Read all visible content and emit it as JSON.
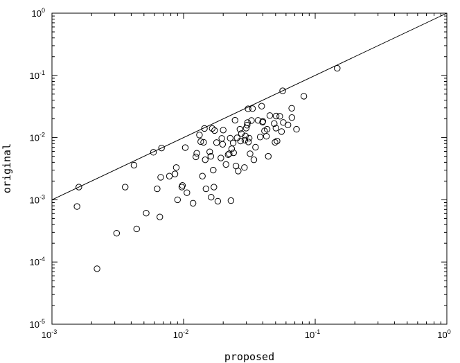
{
  "chart_data": {
    "type": "scatter",
    "xlabel": "proposed",
    "ylabel": "original",
    "xscale": "log",
    "yscale": "log",
    "xlim": [
      0.001,
      1
    ],
    "ylim": [
      1e-05,
      1
    ],
    "grid": false,
    "x_ticks": [
      {
        "base": "10",
        "exp": "-3",
        "value": 0.001
      },
      {
        "base": "10",
        "exp": "-2",
        "value": 0.01
      },
      {
        "base": "10",
        "exp": "-1",
        "value": 0.1
      },
      {
        "base": "10",
        "exp": "0",
        "value": 1
      }
    ],
    "y_ticks": [
      {
        "base": "10",
        "exp": "-5",
        "value": 1e-05
      },
      {
        "base": "10",
        "exp": "-4",
        "value": 0.0001
      },
      {
        "base": "10",
        "exp": "-3",
        "value": 0.001
      },
      {
        "base": "10",
        "exp": "-2",
        "value": 0.01
      },
      {
        "base": "10",
        "exp": "-1",
        "value": 0.1
      },
      {
        "base": "10",
        "exp": "0",
        "value": 1
      }
    ],
    "reference_line": {
      "x": [
        0.001,
        1
      ],
      "y": [
        0.001,
        1
      ]
    },
    "series": [
      {
        "points": [
          [
            0.00155,
            0.00078
          ],
          [
            0.0016,
            0.0016
          ],
          [
            0.0022,
            7.8e-05
          ],
          [
            0.0031,
            0.00029
          ],
          [
            0.0036,
            0.0016
          ],
          [
            0.0042,
            0.0036
          ],
          [
            0.0044,
            0.00034
          ],
          [
            0.0052,
            0.00061
          ],
          [
            0.0059,
            0.0058
          ],
          [
            0.0063,
            0.0015
          ],
          [
            0.0066,
            0.00053
          ],
          [
            0.0067,
            0.0023
          ],
          [
            0.0068,
            0.0068
          ],
          [
            0.0078,
            0.0024
          ],
          [
            0.0086,
            0.0026
          ],
          [
            0.0088,
            0.0033
          ],
          [
            0.009,
            0.001
          ],
          [
            0.0097,
            0.0016
          ],
          [
            0.0098,
            0.0017
          ],
          [
            0.0103,
            0.0069
          ],
          [
            0.0106,
            0.0013
          ],
          [
            0.0118,
            0.00088
          ],
          [
            0.0124,
            0.0049
          ],
          [
            0.0126,
            0.0056
          ],
          [
            0.0132,
            0.011
          ],
          [
            0.0135,
            0.0086
          ],
          [
            0.0139,
            0.0024
          ],
          [
            0.0142,
            0.0084
          ],
          [
            0.0144,
            0.014
          ],
          [
            0.0146,
            0.0044
          ],
          [
            0.0148,
            0.0015
          ],
          [
            0.0158,
            0.0059
          ],
          [
            0.0161,
            0.005
          ],
          [
            0.0162,
            0.0011
          ],
          [
            0.0165,
            0.014
          ],
          [
            0.0168,
            0.003
          ],
          [
            0.017,
            0.0016
          ],
          [
            0.0172,
            0.013
          ],
          [
            0.0178,
            0.0083
          ],
          [
            0.0182,
            0.00095
          ],
          [
            0.0192,
            0.0047
          ],
          [
            0.0195,
            0.0097
          ],
          [
            0.0198,
            0.0078
          ],
          [
            0.02,
            0.0132
          ],
          [
            0.021,
            0.0037
          ],
          [
            0.0218,
            0.0053
          ],
          [
            0.0222,
            0.0055
          ],
          [
            0.0226,
            0.0098
          ],
          [
            0.0229,
            0.00097
          ],
          [
            0.0232,
            0.0066
          ],
          [
            0.0238,
            0.0082
          ],
          [
            0.024,
            0.0057
          ],
          [
            0.0246,
            0.019
          ],
          [
            0.025,
            0.0035
          ],
          [
            0.0255,
            0.0099
          ],
          [
            0.026,
            0.0029
          ],
          [
            0.0268,
            0.0136
          ],
          [
            0.0271,
            0.0088
          ],
          [
            0.0275,
            0.0116
          ],
          [
            0.029,
            0.0033
          ],
          [
            0.0292,
            0.0091
          ],
          [
            0.0295,
            0.0106
          ],
          [
            0.0299,
            0.0142
          ],
          [
            0.0304,
            0.0158
          ],
          [
            0.0306,
            0.0174
          ],
          [
            0.0309,
            0.029
          ],
          [
            0.0311,
            0.0085
          ],
          [
            0.0315,
            0.0098
          ],
          [
            0.032,
            0.0055
          ],
          [
            0.0328,
            0.0188
          ],
          [
            0.0334,
            0.0292
          ],
          [
            0.0342,
            0.0044
          ],
          [
            0.0352,
            0.007
          ],
          [
            0.0368,
            0.0189
          ],
          [
            0.0382,
            0.0102
          ],
          [
            0.0392,
            0.032
          ],
          [
            0.0398,
            0.0177
          ],
          [
            0.04,
            0.0182
          ],
          [
            0.0412,
            0.0128
          ],
          [
            0.0426,
            0.0105
          ],
          [
            0.0431,
            0.0136
          ],
          [
            0.044,
            0.005
          ],
          [
            0.0452,
            0.0226
          ],
          [
            0.0488,
            0.0168
          ],
          [
            0.0495,
            0.0084
          ],
          [
            0.0503,
            0.0142
          ],
          [
            0.0505,
            0.0222
          ],
          [
            0.0513,
            0.0088
          ],
          [
            0.0538,
            0.022
          ],
          [
            0.0555,
            0.0125
          ],
          [
            0.0566,
            0.0564
          ],
          [
            0.0572,
            0.0175
          ],
          [
            0.0621,
            0.016
          ],
          [
            0.0663,
            0.0296
          ],
          [
            0.0665,
            0.021
          ],
          [
            0.0721,
            0.0136
          ],
          [
            0.082,
            0.0462
          ],
          [
            0.147,
            0.13
          ]
        ]
      }
    ]
  }
}
